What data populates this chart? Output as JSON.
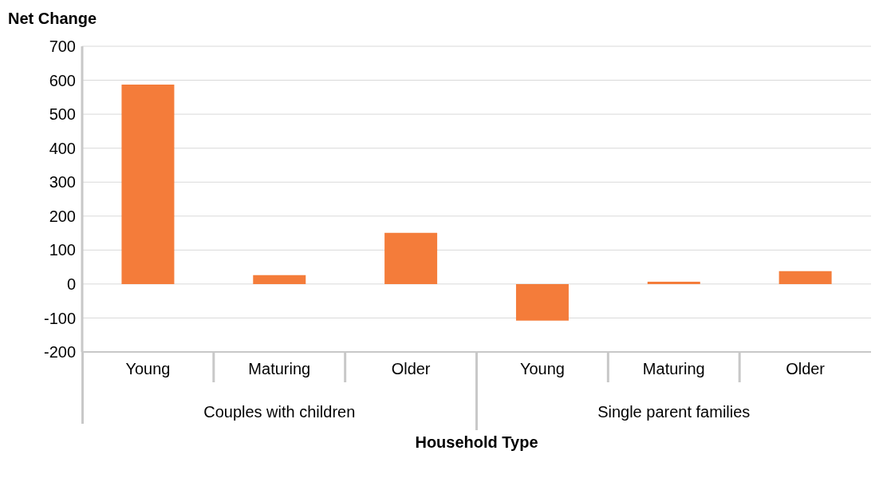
{
  "chart_data": {
    "type": "bar",
    "ylabel": "Net Change",
    "xlabel": "Household Type",
    "categories": [
      "Young",
      "Maturing",
      "Older",
      "Young",
      "Maturing",
      "Older"
    ],
    "values": [
      587,
      26,
      151,
      -108,
      7,
      38
    ],
    "color": "#f47c3a",
    "ylim": [
      -200,
      700
    ],
    "yticks": [
      -200,
      -100,
      0,
      100,
      200,
      300,
      400,
      500,
      600,
      700
    ],
    "grid": "y",
    "annotations": [
      "Couples with children",
      "Single parent families"
    ]
  }
}
